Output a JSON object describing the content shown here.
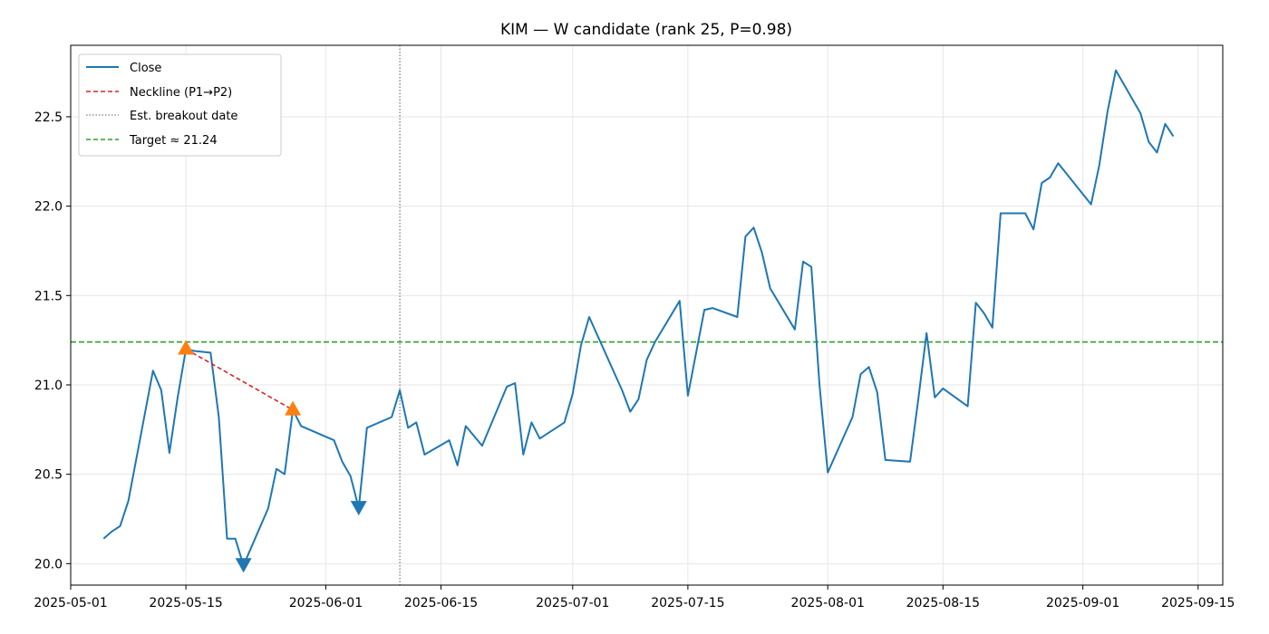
{
  "chart_data": {
    "type": "line",
    "title": "KIM — W candidate (rank 25, P=0.98)",
    "xlabel": "",
    "ylabel": "",
    "x_axis_kind": "date",
    "xlim": [
      "2025-05-01",
      "2025-09-18"
    ],
    "ylim": [
      19.88,
      22.9
    ],
    "x_ticks": [
      "2025-05-01",
      "2025-05-15",
      "2025-06-01",
      "2025-06-15",
      "2025-07-01",
      "2025-07-15",
      "2025-08-01",
      "2025-08-15",
      "2025-09-01",
      "2025-09-15"
    ],
    "y_ticks": [
      20.0,
      20.5,
      21.0,
      21.5,
      22.0,
      22.5
    ],
    "y_tick_labels": [
      "20.0",
      "20.5",
      "21.0",
      "21.5",
      "22.0",
      "22.5"
    ],
    "grid": true,
    "legend_position": "top-left",
    "colors": {
      "close": "#1f77b4",
      "neckline": "#d62728",
      "breakout": "#7f7f7f",
      "target": "#2ca02c",
      "peak_marker": "#ff7f0e",
      "trough_marker": "#1f77b4"
    },
    "series": [
      {
        "name": "Close",
        "points": [
          [
            "2025-05-05",
            20.14
          ],
          [
            "2025-05-06",
            20.18
          ],
          [
            "2025-05-07",
            20.21
          ],
          [
            "2025-05-08",
            20.35
          ],
          [
            "2025-05-11",
            21.08
          ],
          [
            "2025-05-12",
            20.97
          ],
          [
            "2025-05-13",
            20.62
          ],
          [
            "2025-05-14",
            20.93
          ],
          [
            "2025-05-15",
            21.2
          ],
          [
            "2025-05-16",
            21.19
          ],
          [
            "2025-05-18",
            21.18
          ],
          [
            "2025-05-19",
            20.82
          ],
          [
            "2025-05-20",
            20.14
          ],
          [
            "2025-05-21",
            20.14
          ],
          [
            "2025-05-22",
            19.99
          ],
          [
            "2025-05-25",
            20.31
          ],
          [
            "2025-05-26",
            20.53
          ],
          [
            "2025-05-27",
            20.5
          ],
          [
            "2025-05-28",
            20.86
          ],
          [
            "2025-05-29",
            20.77
          ],
          [
            "2025-06-02",
            20.69
          ],
          [
            "2025-06-03",
            20.57
          ],
          [
            "2025-06-04",
            20.49
          ],
          [
            "2025-06-05",
            20.31
          ],
          [
            "2025-06-06",
            20.76
          ],
          [
            "2025-06-09",
            20.82
          ],
          [
            "2025-06-10",
            20.97
          ],
          [
            "2025-06-11",
            20.76
          ],
          [
            "2025-06-12",
            20.79
          ],
          [
            "2025-06-13",
            20.61
          ],
          [
            "2025-06-16",
            20.69
          ],
          [
            "2025-06-17",
            20.55
          ],
          [
            "2025-06-18",
            20.77
          ],
          [
            "2025-06-20",
            20.66
          ],
          [
            "2025-06-23",
            20.99
          ],
          [
            "2025-06-24",
            21.01
          ],
          [
            "2025-06-25",
            20.61
          ],
          [
            "2025-06-26",
            20.79
          ],
          [
            "2025-06-27",
            20.7
          ],
          [
            "2025-06-30",
            20.79
          ],
          [
            "2025-07-01",
            20.95
          ],
          [
            "2025-07-02",
            21.22
          ],
          [
            "2025-07-03",
            21.38
          ],
          [
            "2025-07-07",
            20.97
          ],
          [
            "2025-07-08",
            20.85
          ],
          [
            "2025-07-09",
            20.92
          ],
          [
            "2025-07-10",
            21.14
          ],
          [
            "2025-07-11",
            21.24
          ],
          [
            "2025-07-14",
            21.47
          ],
          [
            "2025-07-15",
            20.94
          ],
          [
            "2025-07-17",
            21.42
          ],
          [
            "2025-07-18",
            21.43
          ],
          [
            "2025-07-21",
            21.38
          ],
          [
            "2025-07-22",
            21.83
          ],
          [
            "2025-07-23",
            21.88
          ],
          [
            "2025-07-24",
            21.74
          ],
          [
            "2025-07-25",
            21.54
          ],
          [
            "2025-07-28",
            21.31
          ],
          [
            "2025-07-29",
            21.69
          ],
          [
            "2025-07-30",
            21.66
          ],
          [
            "2025-07-31",
            21.0
          ],
          [
            "2025-08-01",
            20.51
          ],
          [
            "2025-08-04",
            20.82
          ],
          [
            "2025-08-05",
            21.06
          ],
          [
            "2025-08-06",
            21.1
          ],
          [
            "2025-08-07",
            20.96
          ],
          [
            "2025-08-08",
            20.58
          ],
          [
            "2025-08-11",
            20.57
          ],
          [
            "2025-08-12",
            20.92
          ],
          [
            "2025-08-13",
            21.29
          ],
          [
            "2025-08-14",
            20.93
          ],
          [
            "2025-08-15",
            20.98
          ],
          [
            "2025-08-18",
            20.88
          ],
          [
            "2025-08-19",
            21.46
          ],
          [
            "2025-08-20",
            21.4
          ],
          [
            "2025-08-21",
            21.32
          ],
          [
            "2025-08-22",
            21.96
          ],
          [
            "2025-08-25",
            21.96
          ],
          [
            "2025-08-26",
            21.87
          ],
          [
            "2025-08-27",
            22.13
          ],
          [
            "2025-08-28",
            22.16
          ],
          [
            "2025-08-29",
            22.24
          ],
          [
            "2025-09-02",
            22.01
          ],
          [
            "2025-09-03",
            22.23
          ],
          [
            "2025-09-04",
            22.53
          ],
          [
            "2025-09-05",
            22.76
          ],
          [
            "2025-09-08",
            22.52
          ],
          [
            "2025-09-09",
            22.36
          ],
          [
            "2025-09-10",
            22.3
          ],
          [
            "2025-09-11",
            22.46
          ],
          [
            "2025-09-12",
            22.39
          ]
        ]
      },
      {
        "name": "Neckline (P1→P2)",
        "points": [
          [
            "2025-05-15",
            21.2
          ],
          [
            "2025-05-28",
            20.86
          ]
        ]
      },
      {
        "name": "Est. breakout date",
        "x": "2025-06-10"
      },
      {
        "name": "Target ≈ 21.24",
        "y": 21.24
      }
    ],
    "peaks": [
      [
        "2025-05-15",
        21.2
      ],
      [
        "2025-05-28",
        20.86
      ]
    ],
    "troughs": [
      [
        "2025-05-22",
        19.99
      ],
      [
        "2025-06-05",
        20.31
      ]
    ],
    "legend": [
      "Close",
      "Neckline (P1→P2)",
      "Est. breakout date",
      "Target ≈ 21.24"
    ]
  }
}
